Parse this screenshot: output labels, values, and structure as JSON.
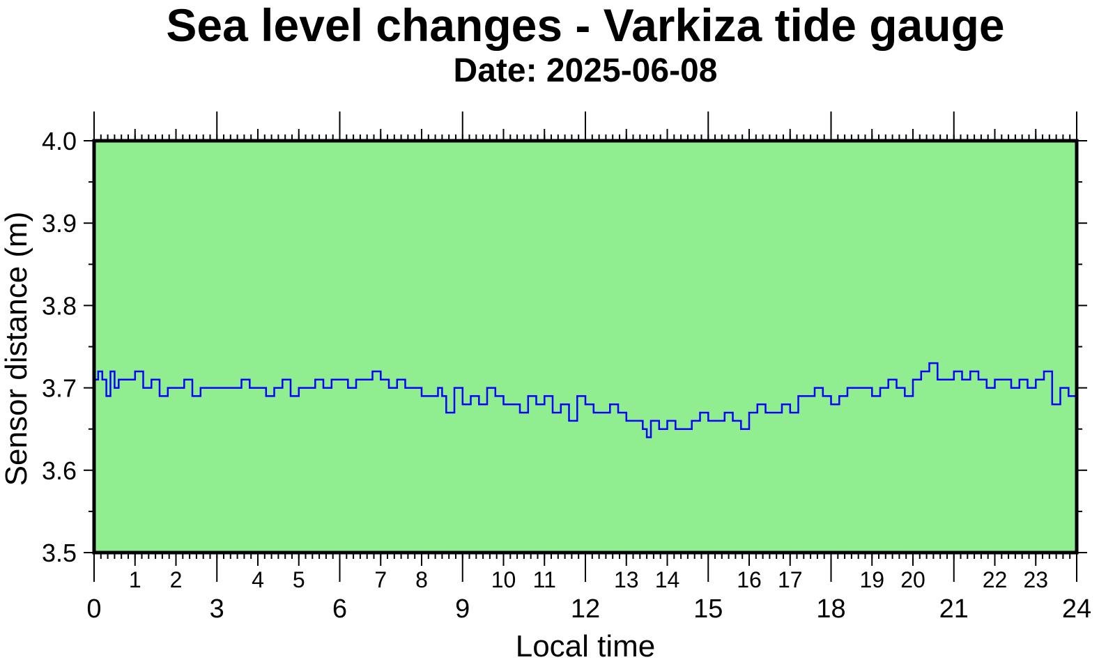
{
  "chart_data": {
    "type": "line",
    "title": "Sea level changes - Varkiza tide gauge",
    "subtitle": "Date: 2025-06-08",
    "xlabel": "Local time",
    "ylabel": "Sensor distance (m)",
    "xlim": [
      0,
      24
    ],
    "ylim": [
      3.5,
      4.0
    ],
    "x_major_ticks": [
      "0",
      "3",
      "6",
      "9",
      "12",
      "15",
      "18",
      "21",
      "24"
    ],
    "x_minor_labels": [
      "1",
      "2",
      "4",
      "5",
      "7",
      "8",
      "10",
      "11",
      "13",
      "14",
      "16",
      "17",
      "19",
      "20",
      "22",
      "23"
    ],
    "y_ticks": [
      "3.5",
      "3.6",
      "3.7",
      "3.8",
      "3.9",
      "4.0"
    ],
    "plot_background": "#90ee90",
    "line_color": "#0000ff",
    "series": [
      {
        "x": [
          0.0,
          0.1,
          0.2,
          0.3,
          0.4,
          0.5,
          0.6,
          0.8,
          1.0,
          1.2,
          1.4,
          1.6,
          1.8,
          2.0,
          2.2,
          2.4,
          2.6,
          2.8,
          3.0,
          3.2,
          3.4,
          3.6,
          3.8,
          4.0,
          4.2,
          4.4,
          4.6,
          4.8,
          5.0,
          5.2,
          5.4,
          5.6,
          5.8,
          6.0,
          6.2,
          6.4,
          6.6,
          6.8,
          7.0,
          7.2,
          7.4,
          7.6,
          7.8,
          8.0,
          8.2,
          8.4,
          8.5,
          8.6,
          8.8,
          9.0,
          9.2,
          9.4,
          9.6,
          9.8,
          10.0,
          10.2,
          10.4,
          10.6,
          10.8,
          11.0,
          11.2,
          11.4,
          11.6,
          11.8,
          12.0,
          12.2,
          12.4,
          12.6,
          12.8,
          13.0,
          13.2,
          13.4,
          13.5,
          13.6,
          13.8,
          14.0,
          14.2,
          14.4,
          14.6,
          14.8,
          15.0,
          15.2,
          15.4,
          15.6,
          15.8,
          16.0,
          16.2,
          16.4,
          16.6,
          16.8,
          17.0,
          17.2,
          17.4,
          17.6,
          17.8,
          18.0,
          18.2,
          18.4,
          18.6,
          18.8,
          19.0,
          19.2,
          19.4,
          19.6,
          19.8,
          20.0,
          20.2,
          20.4,
          20.6,
          20.8,
          21.0,
          21.2,
          21.4,
          21.6,
          21.8,
          22.0,
          22.2,
          22.4,
          22.6,
          22.8,
          23.0,
          23.2,
          23.4,
          23.6,
          23.8,
          24.0
        ],
        "y": [
          3.71,
          3.72,
          3.71,
          3.69,
          3.72,
          3.7,
          3.71,
          3.71,
          3.72,
          3.7,
          3.71,
          3.69,
          3.7,
          3.7,
          3.71,
          3.69,
          3.7,
          3.7,
          3.7,
          3.7,
          3.7,
          3.71,
          3.7,
          3.7,
          3.69,
          3.7,
          3.71,
          3.69,
          3.7,
          3.7,
          3.71,
          3.7,
          3.71,
          3.71,
          3.7,
          3.71,
          3.71,
          3.72,
          3.71,
          3.7,
          3.71,
          3.7,
          3.7,
          3.69,
          3.69,
          3.7,
          3.69,
          3.67,
          3.7,
          3.68,
          3.69,
          3.68,
          3.7,
          3.69,
          3.68,
          3.68,
          3.67,
          3.69,
          3.68,
          3.69,
          3.67,
          3.68,
          3.66,
          3.69,
          3.68,
          3.67,
          3.67,
          3.68,
          3.67,
          3.66,
          3.66,
          3.65,
          3.64,
          3.66,
          3.65,
          3.66,
          3.65,
          3.65,
          3.66,
          3.67,
          3.66,
          3.66,
          3.67,
          3.66,
          3.65,
          3.67,
          3.68,
          3.67,
          3.67,
          3.68,
          3.67,
          3.69,
          3.69,
          3.7,
          3.69,
          3.68,
          3.69,
          3.7,
          3.7,
          3.7,
          3.69,
          3.7,
          3.71,
          3.7,
          3.69,
          3.71,
          3.72,
          3.73,
          3.71,
          3.71,
          3.72,
          3.71,
          3.72,
          3.71,
          3.7,
          3.71,
          3.71,
          3.7,
          3.71,
          3.7,
          3.71,
          3.72,
          3.68,
          3.7,
          3.69,
          3.7
        ]
      }
    ]
  }
}
